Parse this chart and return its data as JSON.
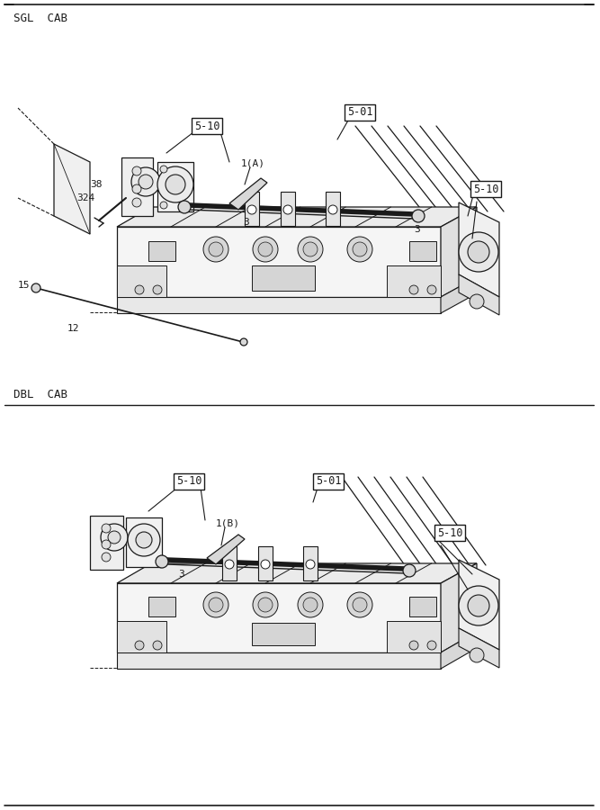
{
  "bg_color": "#ffffff",
  "line_color": "#1a1a1a",
  "section1_label": "SGL  CAB",
  "section2_label": "DBL  CAB",
  "font_size_section": 9,
  "font_size_part": 8,
  "font_size_boxed": 8.5
}
